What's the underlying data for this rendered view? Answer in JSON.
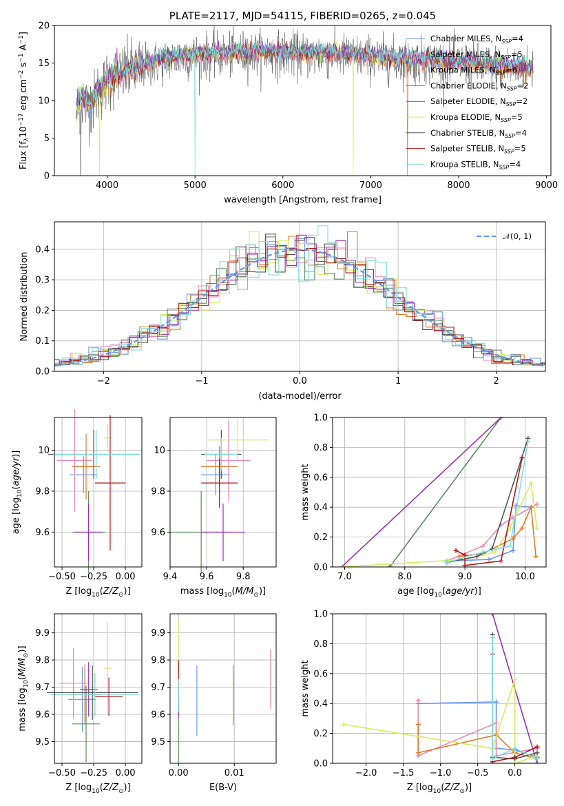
{
  "colors": {
    "Chabrier MILES": "#6495ed",
    "Salpeter MILES": "#e889b8",
    "Kroupa MILES": "#e07a2a",
    "Chabrier ELODIE": "#5a8a5a",
    "Salpeter ELODIE": "#9b30b0",
    "Kroupa ELODIE": "#d4ec5a",
    "Chabrier STELIB": "#555555",
    "Salpeter STELIB": "#b01515",
    "Kroupa STELIB": "#80dede"
  },
  "chart_data": [
    {
      "id": "spectrum",
      "type": "line",
      "title": "PLATE=2117, MJD=54115, FIBERID=0265, z=0.045",
      "xlabel": "wavelength [Angstrom, rest frame]",
      "ylabel": "Flux [f_λ10^-17 erg cm^-2 s^-1 A^-1]",
      "xlim": [
        3400,
        9050
      ],
      "ylim": [
        0,
        20
      ],
      "xticks": [
        4000,
        5000,
        6000,
        7000,
        8000,
        9000
      ],
      "yticks": [
        0,
        5,
        10,
        15,
        20
      ],
      "grid": false,
      "legend_position": "right",
      "legend": [
        {
          "label": "Chabrier MILES, N",
          "sub": "SSP",
          "tail": "=4"
        },
        {
          "label": "Salpeter MILES, N",
          "sub": "SSP",
          "tail": "=5"
        },
        {
          "label": "Kroupa MILES, N",
          "sub": "SSP",
          "tail": "=6"
        },
        {
          "label": "Chabrier ELODIE, N",
          "sub": "SSP",
          "tail": "=2"
        },
        {
          "label": "Salpeter ELODIE, N",
          "sub": "SSP",
          "tail": "=2"
        },
        {
          "label": "Kroupa ELODIE, N",
          "sub": "SSP",
          "tail": "=5"
        },
        {
          "label": "Chabrier STELIB, N",
          "sub": "SSP",
          "tail": "=4"
        },
        {
          "label": "Salpeter STELIB, N",
          "sub": "SSP",
          "tail": "=5"
        },
        {
          "label": "Kroupa STELIB, N",
          "sub": "SSP",
          "tail": "=4"
        }
      ],
      "continuum_nodes": [
        [
          3650,
          8.5
        ],
        [
          3700,
          10.5
        ],
        [
          3780,
          9.5
        ],
        [
          3850,
          10.2
        ],
        [
          3900,
          11.5
        ],
        [
          3950,
          12
        ],
        [
          4000,
          13
        ],
        [
          4100,
          13.5
        ],
        [
          4200,
          13.8
        ],
        [
          4300,
          14.5
        ],
        [
          4400,
          14.8
        ],
        [
          4600,
          15.5
        ],
        [
          4800,
          16
        ],
        [
          5000,
          16.2
        ],
        [
          5200,
          16.3
        ],
        [
          5500,
          16.5
        ],
        [
          5800,
          16.6
        ],
        [
          6000,
          16.5
        ],
        [
          6300,
          16.3
        ],
        [
          6600,
          16.3
        ],
        [
          6800,
          16.2
        ],
        [
          7000,
          16
        ],
        [
          7300,
          15.7
        ],
        [
          7600,
          15.5
        ],
        [
          7900,
          15.3
        ],
        [
          8200,
          15
        ],
        [
          8500,
          14.7
        ],
        [
          8800,
          14.5
        ]
      ],
      "dips": [
        {
          "x": 3700,
          "to": 0,
          "series": "Chabrier STELIB"
        },
        {
          "x": 3915,
          "to": 0,
          "series": "Kroupa ELODIE"
        },
        {
          "x": 5000,
          "to": 0,
          "series": "Kroupa STELIB"
        },
        {
          "x": 6800,
          "to": 0,
          "series": "Kroupa ELODIE"
        },
        {
          "x": 7420,
          "to": 0,
          "series": "Kroupa MILES"
        }
      ]
    },
    {
      "id": "residual-histogram",
      "type": "histogram",
      "xlabel": "(data-model)/error",
      "ylabel": "Normed distribution",
      "xlim": [
        -2.5,
        2.5
      ],
      "ylim": [
        0,
        0.49
      ],
      "xticks": [
        -2,
        -1,
        0,
        1,
        2
      ],
      "yticks": [
        0.0,
        0.1,
        0.2,
        0.3,
        0.4
      ],
      "grid": true,
      "bin_width": 0.1,
      "legend": [
        {
          "label": "𝒩(0, 1)",
          "style": "dashed",
          "color": "#6495ed"
        }
      ],
      "gaussian": {
        "mean": 0,
        "sigma": 1
      }
    },
    {
      "id": "age-vs-Z",
      "type": "errorbar",
      "xlabel": "Z [log10(Z/Z⊙)]",
      "ylabel": "age [log10(age/yr)]",
      "xlim": [
        -0.56,
        0.13
      ],
      "ylim": [
        9.43,
        10.16
      ],
      "xticks": [
        -0.5,
        -0.25,
        0.0
      ],
      "yticks": [
        9.6,
        9.8,
        10.0
      ],
      "grid": true,
      "points": [
        {
          "series": "Chabrier MILES",
          "x": -0.33,
          "y": 9.88,
          "xerr": 0.11,
          "yerr": 0.09
        },
        {
          "series": "Salpeter MILES",
          "x": -0.4,
          "y": 9.95,
          "xerr": 0.14,
          "yerr": 0.25
        },
        {
          "series": "Kroupa MILES",
          "x": -0.31,
          "y": 9.92,
          "xerr": 0.11,
          "yerr": 0.16
        },
        {
          "series": "Chabrier ELODIE",
          "x": -0.29,
          "y": 9.6,
          "xerr": 0.13,
          "yerr": 0.2
        },
        {
          "series": "Salpeter ELODIE",
          "x": -0.29,
          "y": 9.6,
          "xerr": 0.11,
          "yerr": 0.14
        },
        {
          "series": "Kroupa ELODIE",
          "x": -0.14,
          "y": 10.06,
          "xerr": 0.03,
          "yerr": 0.07
        },
        {
          "series": "Chabrier STELIB",
          "x": -0.25,
          "y": 9.98,
          "xerr": 0.36,
          "yerr": 0.12
        },
        {
          "series": "Salpeter STELIB",
          "x": -0.12,
          "y": 9.84,
          "xerr": 0.12,
          "yerr": 0.33
        },
        {
          "series": "Kroupa STELIB",
          "x": -0.23,
          "y": 9.98,
          "xerr": 0.34,
          "yerr": 0.12
        }
      ]
    },
    {
      "id": "age-vs-mass",
      "type": "errorbar",
      "xlabel": "mass [log10(M/M⊙)]",
      "ylabel": "",
      "xlim": [
        9.4,
        9.98
      ],
      "ylim": [
        9.43,
        10.16
      ],
      "xticks": [
        9.4,
        9.6,
        9.8
      ],
      "yticks": [
        9.6,
        9.8,
        10.0
      ],
      "grid": true,
      "points": [
        {
          "series": "Chabrier MILES",
          "x": 9.65,
          "y": 9.88,
          "xerr": 0.08,
          "yerr": 0.1
        },
        {
          "series": "Salpeter MILES",
          "x": 9.72,
          "y": 9.95,
          "xerr": 0.12,
          "yerr": 0.2
        },
        {
          "series": "Kroupa MILES",
          "x": 9.67,
          "y": 9.92,
          "xerr": 0.1,
          "yerr": 0.1
        },
        {
          "series": "Chabrier ELODIE",
          "x": 9.57,
          "y": 9.6,
          "xerr": 0.17,
          "yerr": 0.2
        },
        {
          "series": "Salpeter ELODIE",
          "x": 9.69,
          "y": 9.6,
          "xerr": 0.12,
          "yerr": 0.14
        },
        {
          "series": "Kroupa ELODIE",
          "x": 9.77,
          "y": 10.05,
          "xerr": 0.17,
          "yerr": 0.1
        },
        {
          "series": "Chabrier STELIB",
          "x": 9.68,
          "y": 9.98,
          "xerr": 0.11,
          "yerr": 0.12
        },
        {
          "series": "Salpeter STELIB",
          "x": 9.67,
          "y": 9.84,
          "xerr": 0.1,
          "yerr": 0.12
        },
        {
          "series": "Kroupa STELIB",
          "x": 9.68,
          "y": 9.98,
          "xerr": 0.09,
          "yerr": 0.08
        }
      ]
    },
    {
      "id": "massweight-vs-age",
      "type": "line",
      "xlabel": "age [log10(age/yr)]",
      "ylabel": "mass weight",
      "xlim": [
        6.8,
        10.35
      ],
      "ylim": [
        0,
        1.0
      ],
      "xticks": [
        7,
        8,
        9,
        10
      ],
      "yticks": [
        0.0,
        0.2,
        0.4,
        0.6,
        0.8,
        1.0
      ],
      "grid": true,
      "series": [
        {
          "name": "Chabrier MILES",
          "x": [
            8.75,
            9.4,
            9.8,
            9.85,
            10.1
          ],
          "y": [
            0.04,
            0.05,
            0.11,
            0.41,
            0.4
          ]
        },
        {
          "name": "Salpeter MILES",
          "x": [
            8.7,
            9.3,
            9.6,
            9.8,
            10.2
          ],
          "y": [
            0.04,
            0.14,
            0.28,
            0.33,
            0.42
          ]
        },
        {
          "name": "Kroupa MILES",
          "x": [
            8.9,
            9.3,
            9.8,
            9.95,
            10.1,
            10.18
          ],
          "y": [
            0.07,
            0.09,
            0.19,
            0.26,
            0.4,
            0.07
          ]
        },
        {
          "name": "Chabrier ELODIE",
          "x": [
            7.75,
            9.6
          ],
          "y": [
            0.0,
            1.0
          ]
        },
        {
          "name": "Salpeter ELODIE",
          "x": [
            6.95,
            9.6
          ],
          "y": [
            0.0,
            1.0
          ]
        },
        {
          "name": "Kroupa ELODIE",
          "x": [
            6.95,
            9.0,
            9.5,
            9.75,
            10.1,
            10.2
          ],
          "y": [
            0.0,
            0.05,
            0.1,
            0.26,
            0.56,
            0.26
          ]
        },
        {
          "name": "Chabrier STELIB",
          "x": [
            8.7,
            9.2,
            9.45,
            10.05
          ],
          "y": [
            0.03,
            0.07,
            0.12,
            0.86
          ]
        },
        {
          "name": "Salpeter STELIB",
          "x": [
            8.85,
            9.0,
            9.0,
            9.6,
            9.95
          ],
          "y": [
            0.11,
            0.08,
            0.01,
            0.04,
            0.73
          ]
        },
        {
          "name": "Kroupa STELIB",
          "x": [
            8.7,
            9.3,
            9.75,
            10.05
          ],
          "y": [
            0.03,
            0.1,
            0.14,
            0.84
          ]
        }
      ]
    },
    {
      "id": "mass-vs-Z",
      "type": "errorbar",
      "xlabel": "Z [log10(Z/Z⊙)]",
      "ylabel": "mass [log10(M/M⊙)]",
      "xlim": [
        -0.56,
        0.13
      ],
      "ylim": [
        9.42,
        9.97
      ],
      "xticks": [
        -0.5,
        -0.25,
        0.0
      ],
      "yticks": [
        9.5,
        9.6,
        9.7,
        9.8,
        9.9
      ],
      "grid": true,
      "points": [
        {
          "series": "Chabrier MILES",
          "x": -0.34,
          "y": 9.655,
          "xerr": 0.11,
          "yerr": 0.12
        },
        {
          "series": "Salpeter MILES",
          "x": -0.41,
          "y": 9.715,
          "xerr": 0.12,
          "yerr": 0.13
        },
        {
          "series": "Kroupa MILES",
          "x": -0.32,
          "y": 9.673,
          "xerr": 0.13,
          "yerr": 0.11
        },
        {
          "series": "Chabrier ELODIE",
          "x": -0.31,
          "y": 9.565,
          "xerr": 0.11,
          "yerr": 0.14
        },
        {
          "series": "Salpeter ELODIE",
          "x": -0.29,
          "y": 9.692,
          "xerr": 0.07,
          "yerr": 0.1
        },
        {
          "series": "Kroupa ELODIE",
          "x": -0.14,
          "y": 9.77,
          "xerr": 0.03,
          "yerr": 0.17
        },
        {
          "series": "Chabrier STELIB",
          "x": -0.26,
          "y": 9.68,
          "xerr": 0.36,
          "yerr": 0.1
        },
        {
          "series": "Salpeter STELIB",
          "x": -0.13,
          "y": 9.665,
          "xerr": 0.11,
          "yerr": 0.07
        },
        {
          "series": "Kroupa STELIB",
          "x": -0.24,
          "y": 9.672,
          "xerr": 0.35,
          "yerr": 0.08
        }
      ]
    },
    {
      "id": "mass-vs-EBV",
      "type": "errorbar",
      "xlabel": "E(B-V)",
      "ylabel": "",
      "xlim": [
        -0.0015,
        0.0175
      ],
      "ylim": [
        9.42,
        9.97
      ],
      "xticks": [
        0.0,
        0.01
      ],
      "yticks": [
        9.5,
        9.6,
        9.7,
        9.8,
        9.9
      ],
      "grid": true,
      "points": [
        {
          "series": "Chabrier MILES",
          "x": 0.0033,
          "y": 9.65,
          "xerr": 0,
          "yerr": 0.13
        },
        {
          "series": "Salpeter MILES",
          "x": 0.0165,
          "y": 9.73,
          "xerr": 0,
          "yerr": 0.11
        },
        {
          "series": "Kroupa MILES",
          "x": 0.0098,
          "y": 9.67,
          "xerr": 0,
          "yerr": 0.11
        },
        {
          "series": "Chabrier ELODIE",
          "x": 0.0,
          "y": 9.55,
          "xerr": 0,
          "yerr": 0.13
        },
        {
          "series": "Salpeter ELODIE",
          "x": 0.0,
          "y": 9.69,
          "xerr": 0,
          "yerr": 0.1
        },
        {
          "series": "Kroupa ELODIE",
          "x": 0.0,
          "y": 9.8,
          "xerr": 0,
          "yerr": 0.14
        },
        {
          "series": "Chabrier STELIB",
          "x": 0.0,
          "y": 9.66,
          "xerr": 0,
          "yerr": 0.05
        },
        {
          "series": "Salpeter STELIB",
          "x": 0.0,
          "y": 9.76,
          "xerr": 0,
          "yerr": 0.04
        },
        {
          "series": "Kroupa STELIB",
          "x": 0.0,
          "y": 9.67,
          "xerr": 0,
          "yerr": 0.06
        }
      ]
    },
    {
      "id": "massweight-vs-Z",
      "type": "line",
      "xlabel": "Z [log10(Z/Z⊙)]",
      "ylabel": "mass weight",
      "xlim": [
        -2.45,
        0.42
      ],
      "ylim": [
        0,
        1.0
      ],
      "xticks": [
        -2.0,
        -1.5,
        -1.0,
        -0.5,
        0.0
      ],
      "yticks": [
        0.0,
        0.2,
        0.4,
        0.6,
        0.8,
        1.0
      ],
      "grid": true,
      "series": [
        {
          "name": "Chabrier MILES",
          "x": [
            -1.3,
            -0.25,
            -0.25,
            0.0,
            0.3
          ],
          "y": [
            0.4,
            0.41,
            0.1,
            0.09,
            0.04
          ]
        },
        {
          "name": "Salpeter MILES",
          "x": [
            -1.3,
            -1.3,
            -0.25,
            -0.25,
            0.3
          ],
          "y": [
            0.42,
            0.05,
            0.27,
            0.05,
            0.1
          ]
        },
        {
          "name": "Kroupa MILES",
          "x": [
            -1.3,
            -1.3,
            -0.25,
            0.0,
            0.3
          ],
          "y": [
            0.26,
            0.07,
            0.19,
            0.07,
            0.03
          ]
        },
        {
          "name": "Chabrier ELODIE",
          "x": [
            -0.3,
            0.3
          ],
          "y": [
            0.0,
            0.0
          ]
        },
        {
          "name": "Salpeter ELODIE",
          "x": [
            -0.3,
            0.3,
            0.3
          ],
          "y": [
            1.0,
            0.0,
            0.0
          ]
        },
        {
          "name": "Kroupa ELODIE",
          "x": [
            -2.3,
            -0.3,
            0.0,
            0.0,
            0.3
          ],
          "y": [
            0.26,
            0.1,
            0.56,
            0.0,
            0.05
          ]
        },
        {
          "name": "Chabrier STELIB",
          "x": [
            -0.3,
            -0.3,
            0.0,
            0.3
          ],
          "y": [
            0.86,
            0.04,
            0.03,
            0.07
          ]
        },
        {
          "name": "Salpeter STELIB",
          "x": [
            -0.3,
            -0.3,
            0.0,
            0.3
          ],
          "y": [
            0.73,
            0.01,
            0.04,
            0.11
          ]
        },
        {
          "name": "Kroupa STELIB",
          "x": [
            -0.3,
            -0.3,
            0.0,
            0.3
          ],
          "y": [
            0.84,
            0.03,
            0.1,
            0.03
          ]
        }
      ]
    }
  ]
}
